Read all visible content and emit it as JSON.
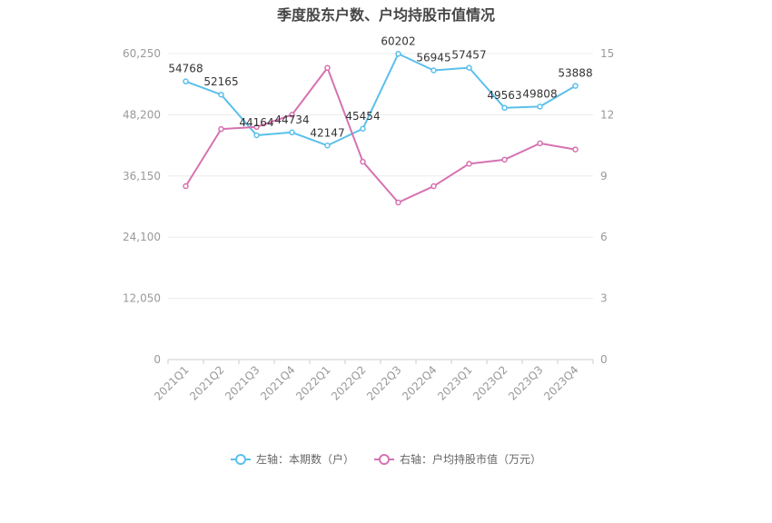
{
  "chart_data": {
    "type": "line",
    "title": "季度股东户数、户均持股市值情况",
    "categories": [
      "2021Q1",
      "2021Q2",
      "2021Q3",
      "2021Q4",
      "2022Q1",
      "2022Q2",
      "2022Q3",
      "2022Q4",
      "2023Q1",
      "2023Q2",
      "2023Q3",
      "2023Q4"
    ],
    "left_axis": {
      "ticks": [
        "0",
        "12,050",
        "24,100",
        "36,150",
        "48,200",
        "60,250"
      ],
      "ylim": [
        0,
        60250
      ]
    },
    "right_axis": {
      "ticks": [
        "0",
        "3",
        "6",
        "9",
        "12",
        "15"
      ],
      "ylim": [
        0,
        15
      ]
    },
    "series": [
      {
        "name": "左轴：本期数（户）",
        "axis": "left",
        "color": "#5BC0EB",
        "values": [
          54768,
          52165,
          44164,
          44734,
          42147,
          45454,
          60202,
          56945,
          57457,
          49563,
          49808,
          53888
        ],
        "labels": [
          "54768",
          "52165",
          "44164",
          "44734",
          "42147",
          "45454",
          "60202",
          "56945",
          "57457",
          "49563",
          "49808",
          "53888"
        ]
      },
      {
        "name": "右轴：户均持股市值（万元）",
        "axis": "right",
        "color": "#D672B1",
        "values": [
          8.5,
          11.3,
          11.4,
          12.0,
          14.3,
          9.7,
          7.7,
          8.5,
          9.6,
          9.8,
          10.6,
          10.3
        ]
      }
    ],
    "grid": true,
    "legend_position": "bottom"
  }
}
